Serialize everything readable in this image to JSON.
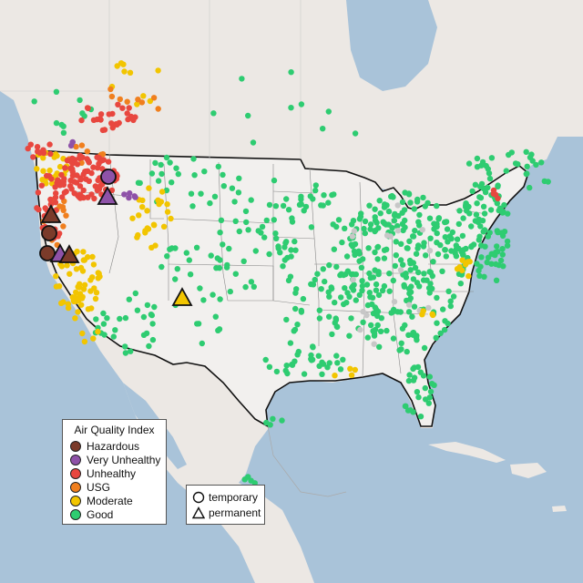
{
  "legend": {
    "title": "Air Quality Index",
    "items": [
      {
        "label": "Hazardous",
        "color": "#7b3b2a"
      },
      {
        "label": "Very Unhealthy",
        "color": "#8e52a8"
      },
      {
        "label": "Unhealthy",
        "color": "#e8473f"
      },
      {
        "label": "USG",
        "color": "#f07f1e"
      },
      {
        "label": "Moderate",
        "color": "#f2c500"
      },
      {
        "label": "Good",
        "color": "#2ecc71"
      }
    ]
  },
  "type_legend": {
    "temporary": "temporary",
    "permanent": "permanent"
  },
  "colors": {
    "water": "#a9c3d9",
    "land": "#efecea",
    "us_land": "#f1efee",
    "border": "#111111",
    "missing_monitor": "#c7c7c7"
  }
}
